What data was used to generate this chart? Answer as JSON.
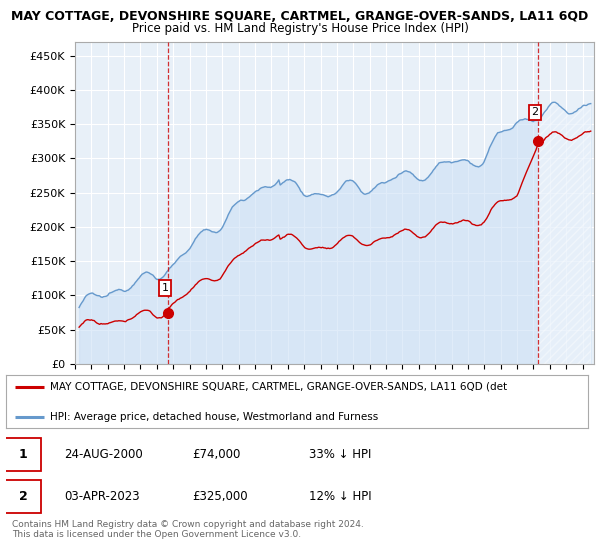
{
  "title": "MAY COTTAGE, DEVONSHIRE SQUARE, CARTMEL, GRANGE-OVER-SANDS, LA11 6QD",
  "subtitle": "Price paid vs. HM Land Registry's House Price Index (HPI)",
  "ylabel_ticks": [
    "£0",
    "£50K",
    "£100K",
    "£150K",
    "£200K",
    "£250K",
    "£300K",
    "£350K",
    "£400K",
    "£450K"
  ],
  "ytick_values": [
    0,
    50000,
    100000,
    150000,
    200000,
    250000,
    300000,
    350000,
    400000,
    450000
  ],
  "ylim": [
    0,
    470000
  ],
  "xlim_start": 1995.3,
  "xlim_end": 2026.7,
  "sale1_date": 2000.65,
  "sale1_price": 74000,
  "sale2_date": 2023.25,
  "sale2_price": 325000,
  "hpi_color": "#6699cc",
  "hpi_fill_color": "#ddeeff",
  "price_color": "#cc0000",
  "vline_color": "#cc0000",
  "background_color": "#ffffff",
  "grid_color": "#cccccc",
  "legend_label_red": "MAY COTTAGE, DEVONSHIRE SQUARE, CARTMEL, GRANGE-OVER-SANDS, LA11 6QD (det",
  "legend_label_blue": "HPI: Average price, detached house, Westmorland and Furness",
  "table_row1": [
    "1",
    "24-AUG-2000",
    "£74,000",
    "33% ↓ HPI"
  ],
  "table_row2": [
    "2",
    "03-APR-2023",
    "£325,000",
    "12% ↓ HPI"
  ],
  "footnote": "Contains HM Land Registry data © Crown copyright and database right 2024.\nThis data is licensed under the Open Government Licence v3.0.",
  "title_fontsize": 9,
  "subtitle_fontsize": 8.5,
  "tick_fontsize": 8
}
